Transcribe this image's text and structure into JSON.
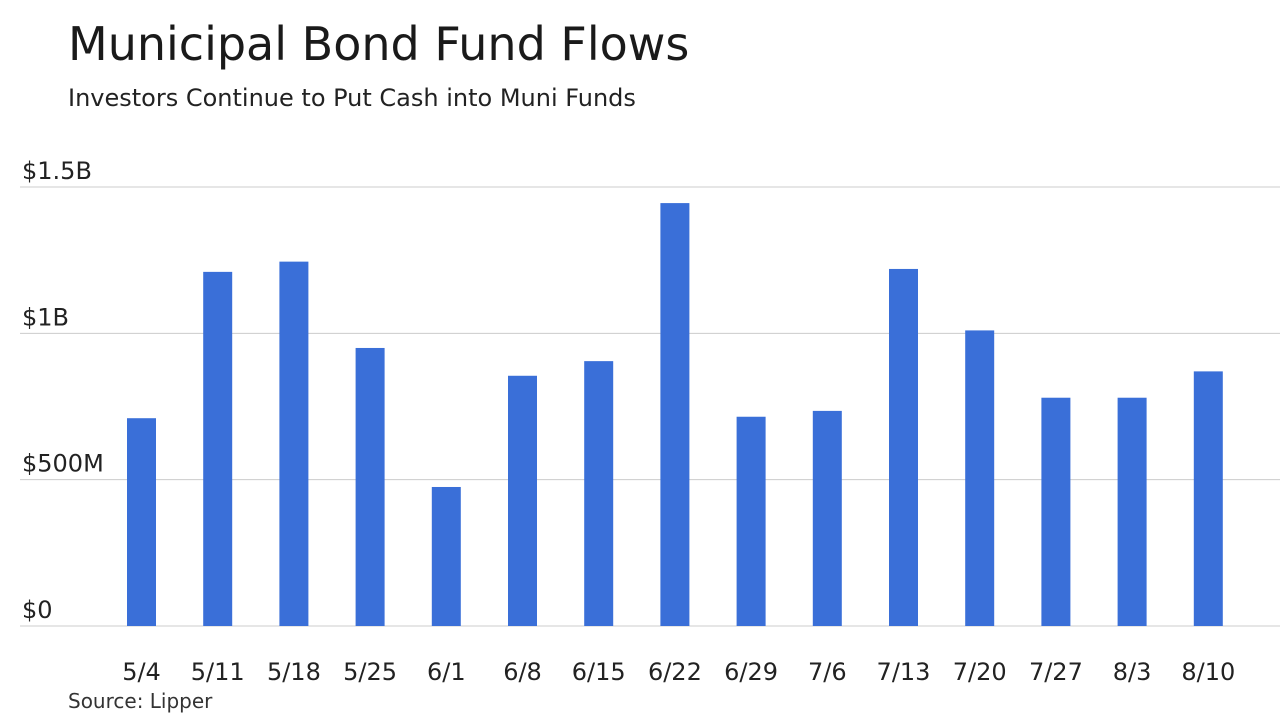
{
  "title": "Municipal Bond Fund Flows",
  "subtitle": "Investors Continue to Put Cash into Muni Funds",
  "source": "Source: Lipper",
  "colors": {
    "bar": "#3a6fd8",
    "grid": "#cccccc",
    "text": "#222222"
  },
  "chart_data": {
    "type": "bar",
    "title": "Municipal Bond Fund Flows",
    "subtitle": "Investors Continue to Put Cash into Muni Funds",
    "xlabel": "",
    "ylabel": "",
    "categories": [
      "5/4",
      "5/11",
      "5/18",
      "5/25",
      "6/1",
      "6/8",
      "6/15",
      "6/22",
      "6/29",
      "7/6",
      "7/13",
      "7/20",
      "7/27",
      "8/3",
      "8/10"
    ],
    "values": [
      710000000,
      1210000000,
      1245000000,
      950000000,
      475000000,
      855000000,
      905000000,
      1445000000,
      715000000,
      735000000,
      1220000000,
      1010000000,
      780000000,
      780000000,
      870000000
    ],
    "unit": "USD",
    "ylim": [
      0,
      1500000000
    ],
    "yticks": [
      0,
      500000000,
      1000000000,
      1500000000
    ],
    "ytick_labels": [
      "$0",
      "$500M",
      "$1B",
      "$1.5B"
    ],
    "grid": true,
    "legend": "none"
  }
}
